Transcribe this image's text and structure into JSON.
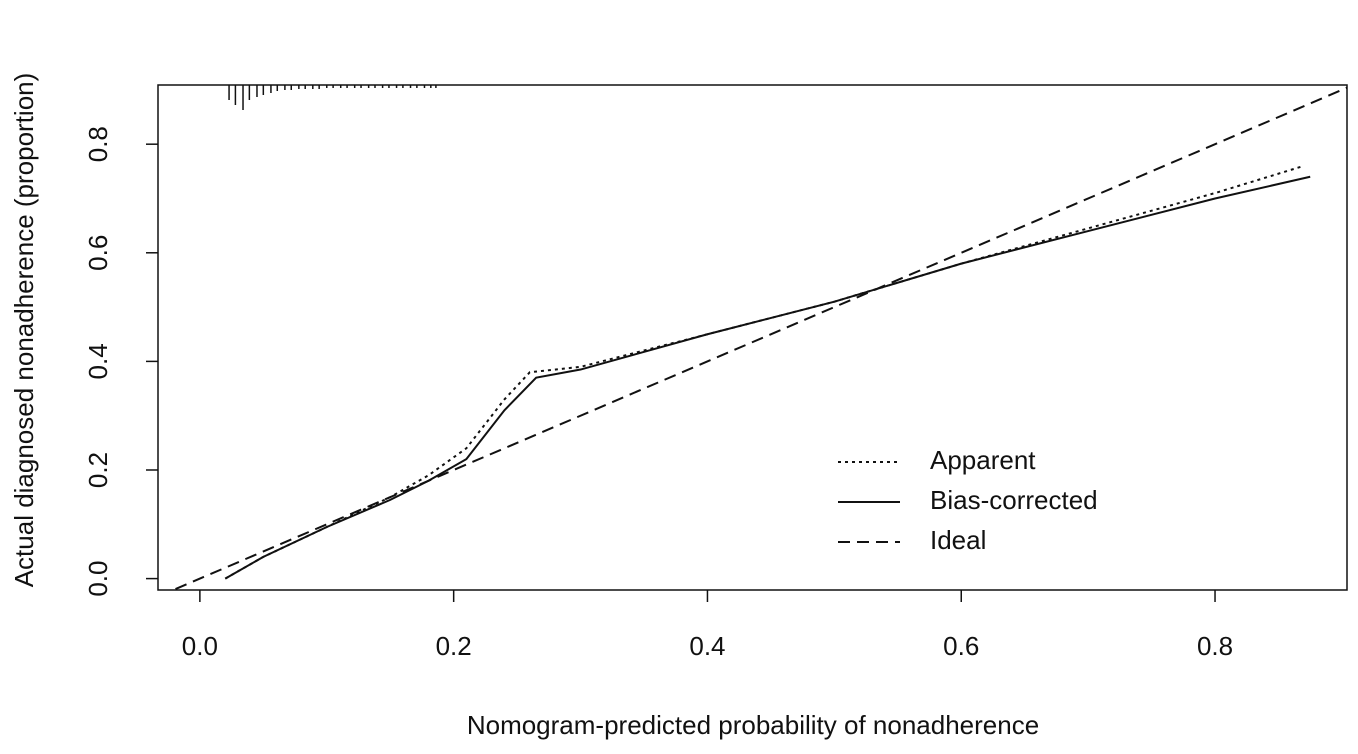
{
  "chart_data": {
    "type": "line",
    "x_label": "Nomogram-predicted probability of nonadherence",
    "y_label": "Actual diagnosed nonadherence (proportion)",
    "xlim": [
      -0.033,
      0.904
    ],
    "ylim": [
      -0.021,
      0.909
    ],
    "xticks": [
      {
        "value": 0,
        "label": "0.0"
      },
      0.2,
      0.4,
      0.6,
      0.8
    ],
    "yticks": [
      {
        "value": 0,
        "label": "0.0"
      },
      0.2,
      0.4,
      0.6,
      0.8
    ],
    "legend": "bottom-right",
    "series": [
      {
        "name": "Apparent",
        "color": "#111111",
        "dash": "dotted",
        "x": [
          0.02,
          0.05,
          0.1,
          0.15,
          0.18,
          0.21,
          0.24,
          0.26,
          0.3,
          0.4,
          0.5,
          0.6,
          0.7,
          0.8,
          0.87
        ],
        "values": [
          0.0,
          0.04,
          0.095,
          0.15,
          0.19,
          0.24,
          0.33,
          0.38,
          0.39,
          0.45,
          0.51,
          0.58,
          0.645,
          0.71,
          0.76
        ]
      },
      {
        "name": "Bias-corrected",
        "color": "#111111",
        "dash": "solid",
        "x": [
          0.02,
          0.05,
          0.1,
          0.15,
          0.18,
          0.21,
          0.24,
          0.265,
          0.3,
          0.4,
          0.5,
          0.6,
          0.7,
          0.8,
          0.875
        ],
        "values": [
          0.0,
          0.04,
          0.095,
          0.145,
          0.18,
          0.22,
          0.31,
          0.37,
          0.385,
          0.45,
          0.51,
          0.58,
          0.64,
          0.7,
          0.74
        ]
      },
      {
        "name": "Ideal",
        "color": "#111111",
        "dash": "dashed",
        "x": [
          -0.033,
          0.904
        ],
        "values": [
          -0.033,
          0.904
        ]
      }
    ],
    "rug": {
      "x": [
        0.023,
        0.028,
        0.034,
        0.039,
        0.045,
        0.05,
        0.056,
        0.061,
        0.067,
        0.072,
        0.078,
        0.083,
        0.089,
        0.094,
        0.1,
        0.105,
        0.111,
        0.116,
        0.122,
        0.127,
        0.133,
        0.138,
        0.144,
        0.149,
        0.155,
        0.16,
        0.166,
        0.171,
        0.177,
        0.182,
        0.186
      ],
      "sizes": [
        15,
        20,
        25,
        15,
        12,
        10,
        8,
        6,
        5,
        5,
        4,
        4,
        4,
        4,
        3,
        3,
        3,
        3,
        3,
        3,
        3,
        3,
        3,
        3,
        3,
        3,
        3,
        3,
        3,
        3,
        3
      ]
    }
  }
}
